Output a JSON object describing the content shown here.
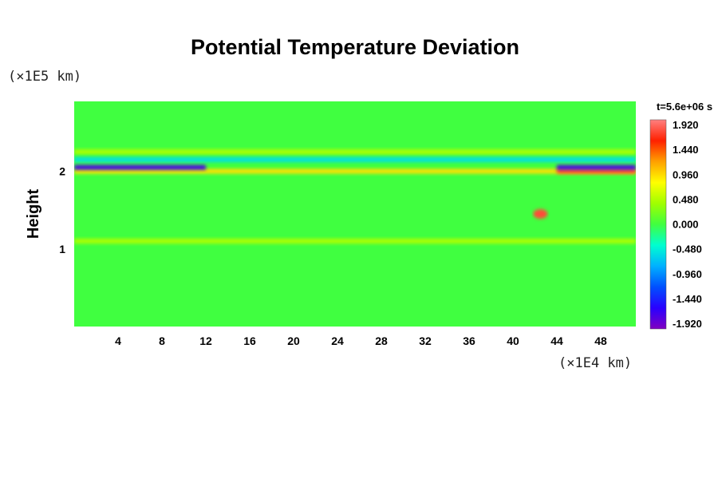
{
  "chart_data": {
    "type": "heatmap",
    "title": "Potential Temperature Deviation",
    "xlabel": "",
    "ylabel": "Height",
    "x_unit_label": "(×1E4 km)",
    "y_unit_label": "(×1E5 km)",
    "time_label": "t=5.6e+06 s",
    "xlim": [
      0,
      51.2
    ],
    "ylim": [
      0,
      2.9
    ],
    "x_ticks": [
      4,
      8,
      12,
      16,
      20,
      24,
      28,
      32,
      36,
      40,
      44,
      48
    ],
    "y_ticks": [
      1,
      2
    ],
    "colorbar": {
      "ticks": [
        "1.920",
        "1.440",
        "0.960",
        "0.480",
        "0.000",
        "-0.480",
        "-0.960",
        "-1.440",
        "-1.920"
      ],
      "vmin": -2.16,
      "vmax": 2.16,
      "colors": [
        "#8000c0",
        "#2a00ff",
        "#0050ff",
        "#00b0ff",
        "#00ffd0",
        "#40ff40",
        "#a0ff00",
        "#ffff00",
        "#ffa000",
        "#ff2000",
        "#ff8080"
      ]
    },
    "background_value": 0.0,
    "features": [
      {
        "x": [
          0,
          51.2
        ],
        "y": 2.25,
        "value": 0.5
      },
      {
        "x": [
          0,
          51.2
        ],
        "y": 2.15,
        "value": -0.6
      },
      {
        "x": [
          0,
          51.2
        ],
        "y": 2.0,
        "value": 1.0
      },
      {
        "x": [
          0,
          12
        ],
        "y": 2.05,
        "value": -1.9
      },
      {
        "x": [
          44,
          51.2
        ],
        "y": 2.0,
        "value": 1.9
      },
      {
        "x": [
          44,
          51.2
        ],
        "y": 2.05,
        "value": -1.9
      },
      {
        "x": 42.5,
        "y": 1.45,
        "value": 1.92
      },
      {
        "x": [
          0,
          51.2
        ],
        "y": 1.1,
        "value": 0.5
      }
    ]
  }
}
